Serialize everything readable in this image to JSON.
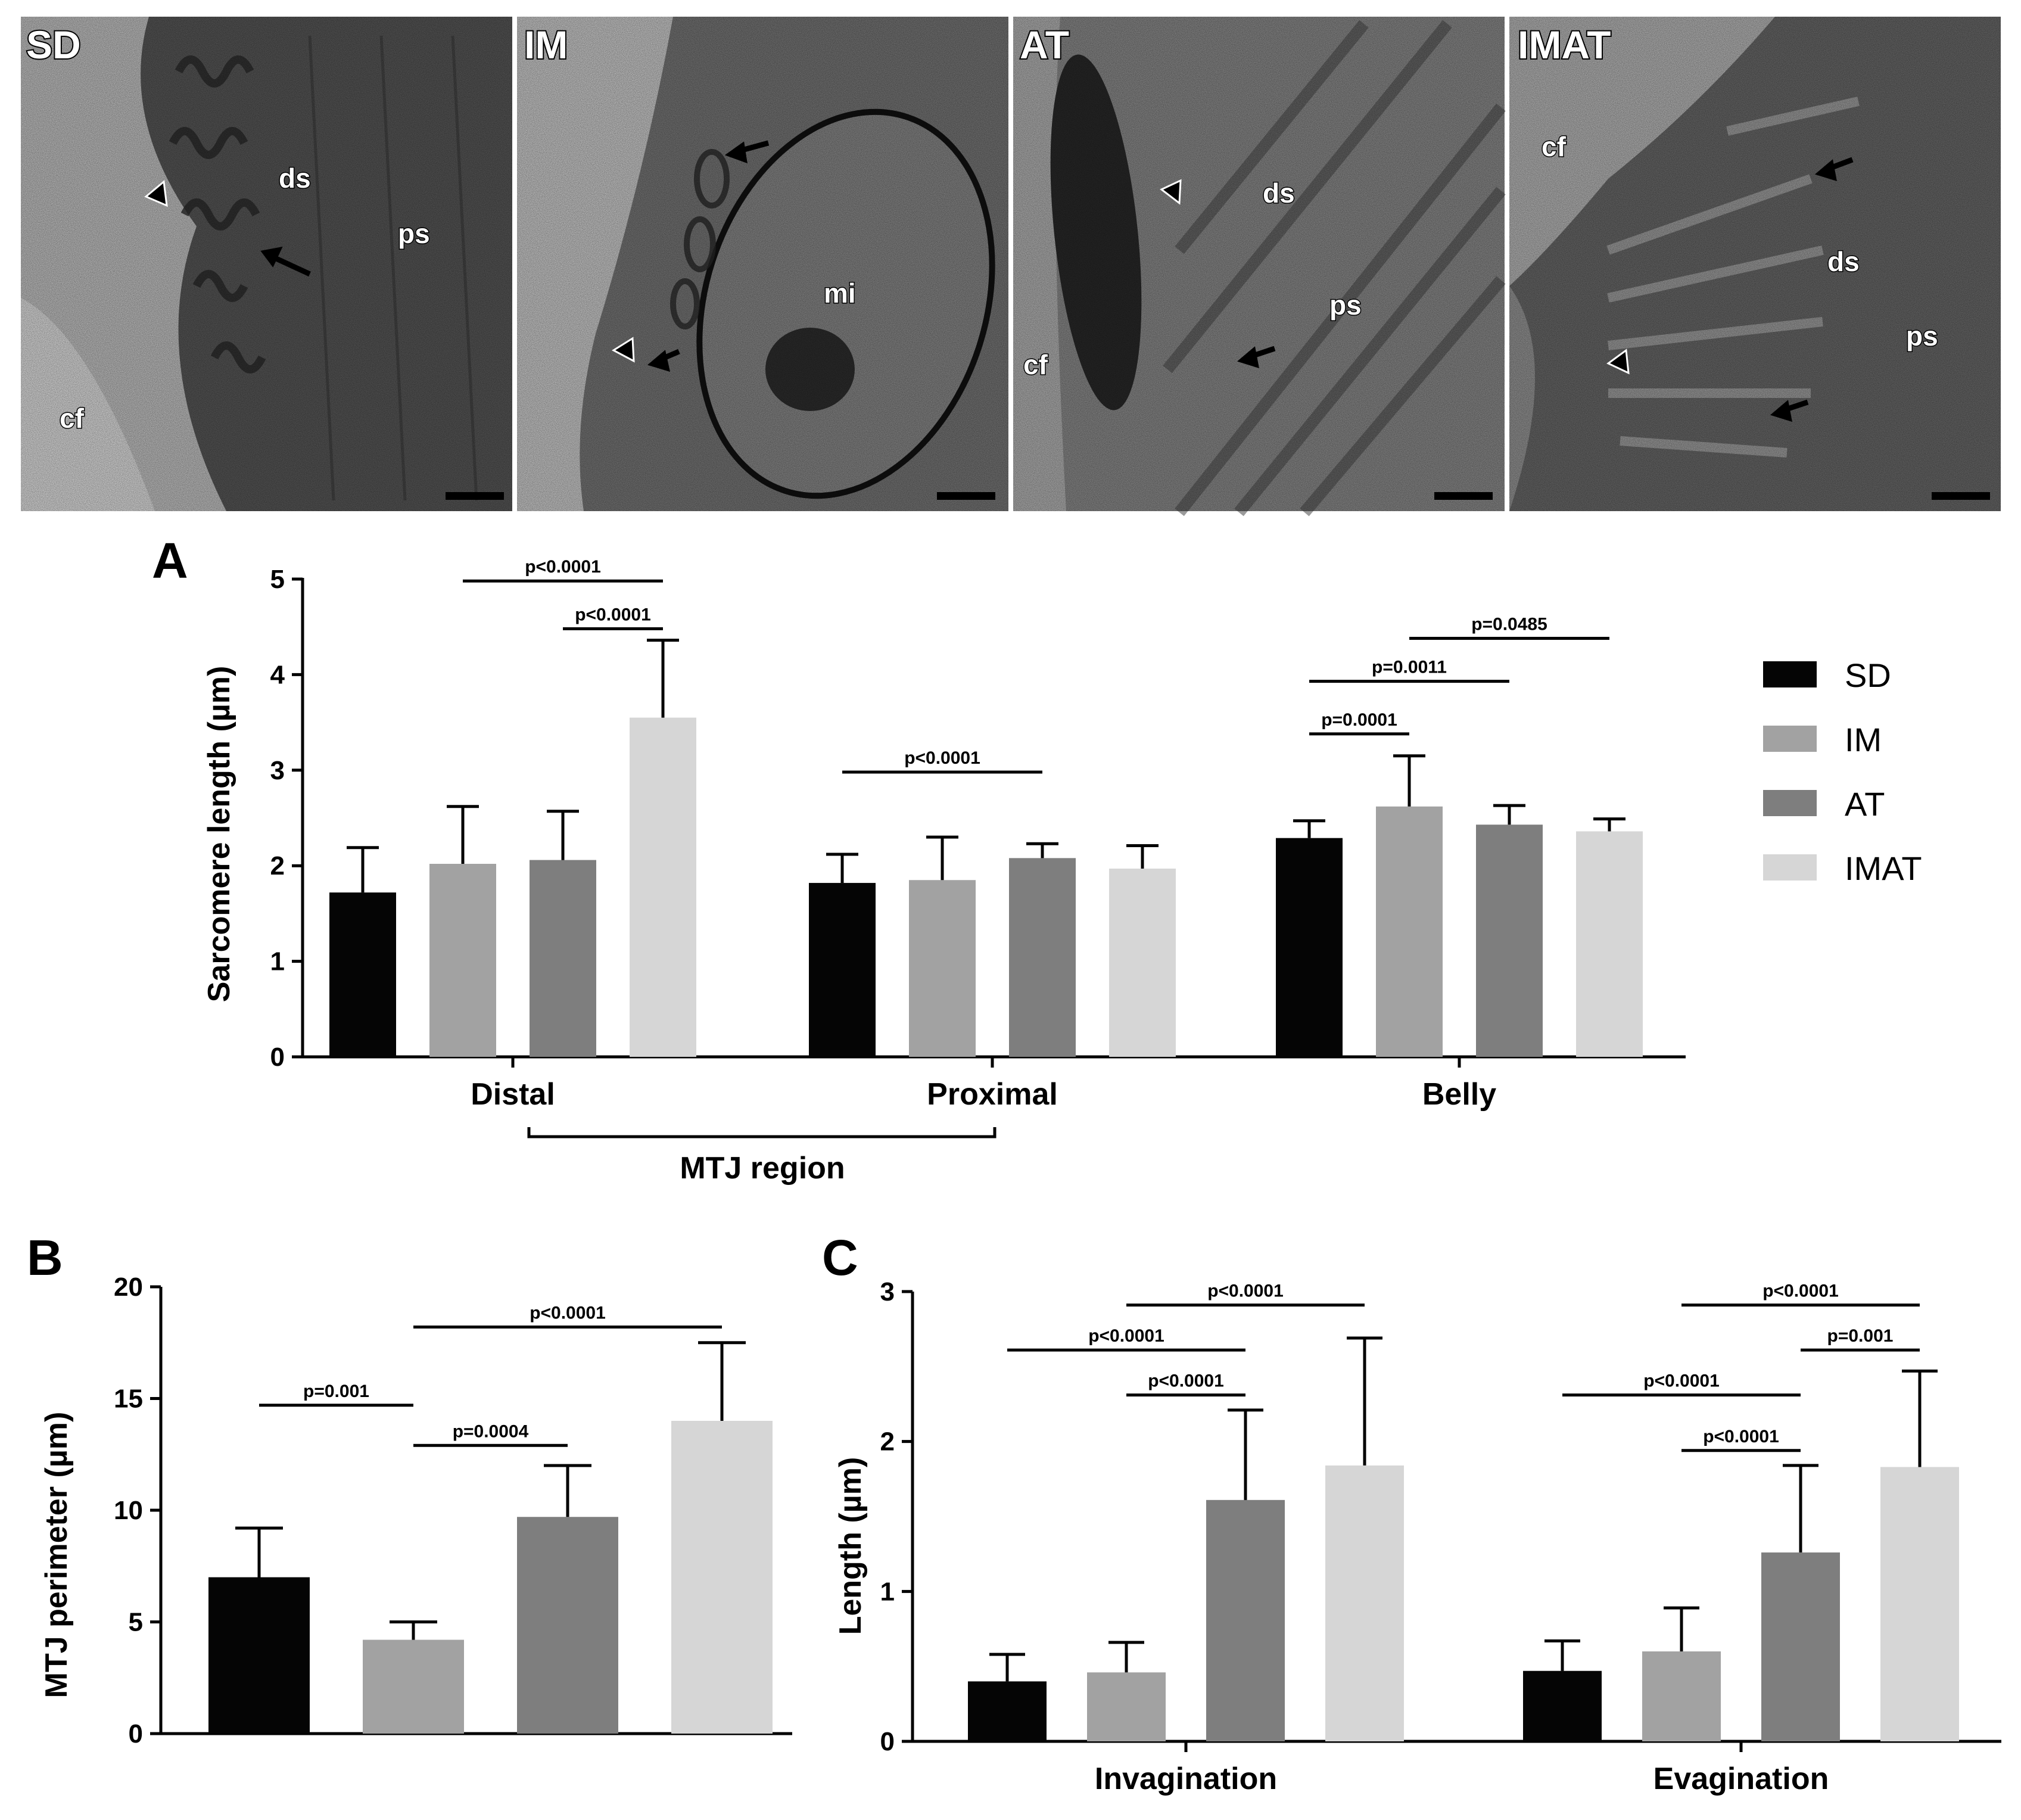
{
  "colors": {
    "SD": "#050505",
    "IM": "#a2a2a2",
    "AT": "#7e7e7e",
    "IMAT": "#d6d6d6"
  },
  "micrographs": [
    {
      "label": "SD",
      "annotations": [
        "ds",
        "ps",
        "cf"
      ],
      "scale_bar": true
    },
    {
      "label": "IM",
      "annotations": [
        "mi"
      ],
      "scale_bar": true
    },
    {
      "label": "AT",
      "annotations": [
        "ds",
        "ps",
        "cf"
      ],
      "scale_bar": true
    },
    {
      "label": "IMAT",
      "annotations": [
        "cf",
        "ds",
        "ps"
      ],
      "scale_bar": true
    }
  ],
  "chart_data": [
    {
      "panel": "A",
      "type": "bar",
      "ylabel": "Sarcomere length (µm)",
      "xlabel": "",
      "ylim": [
        0,
        5
      ],
      "yticks": [
        0,
        1,
        2,
        3,
        4,
        5
      ],
      "categories": [
        "Distal",
        "Proximal",
        "Belly"
      ],
      "group_bracket": {
        "label": "MTJ region",
        "from": "Distal",
        "to": "Proximal"
      },
      "legend": {
        "position": "right",
        "entries": [
          "SD",
          "IM",
          "AT",
          "IMAT"
        ]
      },
      "series": [
        {
          "name": "SD",
          "values": [
            1.72,
            1.82,
            2.29
          ],
          "errors": [
            0.47,
            0.3,
            0.18
          ]
        },
        {
          "name": "IM",
          "values": [
            2.02,
            1.85,
            2.62
          ],
          "errors": [
            0.6,
            0.45,
            0.53
          ]
        },
        {
          "name": "AT",
          "values": [
            2.06,
            2.08,
            2.43
          ],
          "errors": [
            0.51,
            0.15,
            0.2
          ]
        },
        {
          "name": "IMAT",
          "values": [
            3.55,
            1.97,
            2.36
          ],
          "errors": [
            0.81,
            0.24,
            0.13
          ]
        }
      ],
      "significance": [
        {
          "label": "p<0.0001",
          "category": 0,
          "from": 1,
          "to": 3,
          "level": 4.98
        },
        {
          "label": "p<0.0001",
          "category": 0,
          "from": 2,
          "to": 3,
          "level": 4.48
        },
        {
          "label": "p<0.0001",
          "category": 1,
          "from": 0,
          "to": 2,
          "level": 2.98
        },
        {
          "label": "p=0.0485",
          "category": 2,
          "from": 1,
          "to": 3,
          "level": 4.38
        },
        {
          "label": "p=0.0011",
          "category": 2,
          "from": 0,
          "to": 2,
          "level": 3.93
        },
        {
          "label": "p=0.0001",
          "category": 2,
          "from": 0,
          "to": 1,
          "level": 3.38
        }
      ]
    },
    {
      "panel": "B",
      "type": "bar",
      "ylabel": "MTJ perimeter (µm)",
      "xlabel": "",
      "ylim": [
        0,
        20
      ],
      "yticks": [
        0,
        5,
        10,
        15,
        20
      ],
      "categories": [
        ""
      ],
      "series": [
        {
          "name": "SD",
          "values": [
            7.0
          ],
          "errors": [
            2.2
          ]
        },
        {
          "name": "IM",
          "values": [
            4.2
          ],
          "errors": [
            0.8
          ]
        },
        {
          "name": "AT",
          "values": [
            9.7
          ],
          "errors": [
            2.3
          ]
        },
        {
          "name": "IMAT",
          "values": [
            14.0
          ],
          "errors": [
            3.5
          ]
        }
      ],
      "significance": [
        {
          "label": "p<0.0001",
          "category": 0,
          "from": 1,
          "to": 3,
          "level": 18.2
        },
        {
          "label": "p=0.001",
          "category": 0,
          "from": 0,
          "to": 1,
          "level": 14.7
        },
        {
          "label": "p=0.0004",
          "category": 0,
          "from": 1,
          "to": 2,
          "level": 12.9
        }
      ]
    },
    {
      "panel": "C",
      "type": "bar",
      "ylabel": "Length (µm)",
      "xlabel": "",
      "ylim": [
        0,
        3
      ],
      "yticks": [
        0,
        1,
        2,
        3
      ],
      "categories": [
        "Invagination",
        "Evagination"
      ],
      "series": [
        {
          "name": "SD",
          "values": [
            0.4,
            0.47
          ],
          "errors": [
            0.18,
            0.2
          ]
        },
        {
          "name": "IM",
          "values": [
            0.46,
            0.6
          ],
          "errors": [
            0.2,
            0.29
          ]
        },
        {
          "name": "AT",
          "values": [
            1.61,
            1.26
          ],
          "errors": [
            0.6,
            0.58
          ]
        },
        {
          "name": "IMAT",
          "values": [
            1.84,
            1.83
          ],
          "errors": [
            0.85,
            0.64
          ]
        }
      ],
      "significance": [
        {
          "label": "p<0.0001",
          "category": 0,
          "from": 1,
          "to": 3,
          "level": 2.91
        },
        {
          "label": "p<0.0001",
          "category": 0,
          "from": 0,
          "to": 2,
          "level": 2.61
        },
        {
          "label": "p<0.0001",
          "category": 0,
          "from": 1,
          "to": 2,
          "level": 2.31
        },
        {
          "label": "p<0.0001",
          "category": 1,
          "from": 1,
          "to": 3,
          "level": 2.91
        },
        {
          "label": "p=0.001",
          "category": 1,
          "from": 2,
          "to": 3,
          "level": 2.61
        },
        {
          "label": "p<0.0001",
          "category": 1,
          "from": 0,
          "to": 2,
          "level": 2.31
        },
        {
          "label": "p<0.0001",
          "category": 1,
          "from": 1,
          "to": 2,
          "level": 1.94
        }
      ]
    }
  ]
}
